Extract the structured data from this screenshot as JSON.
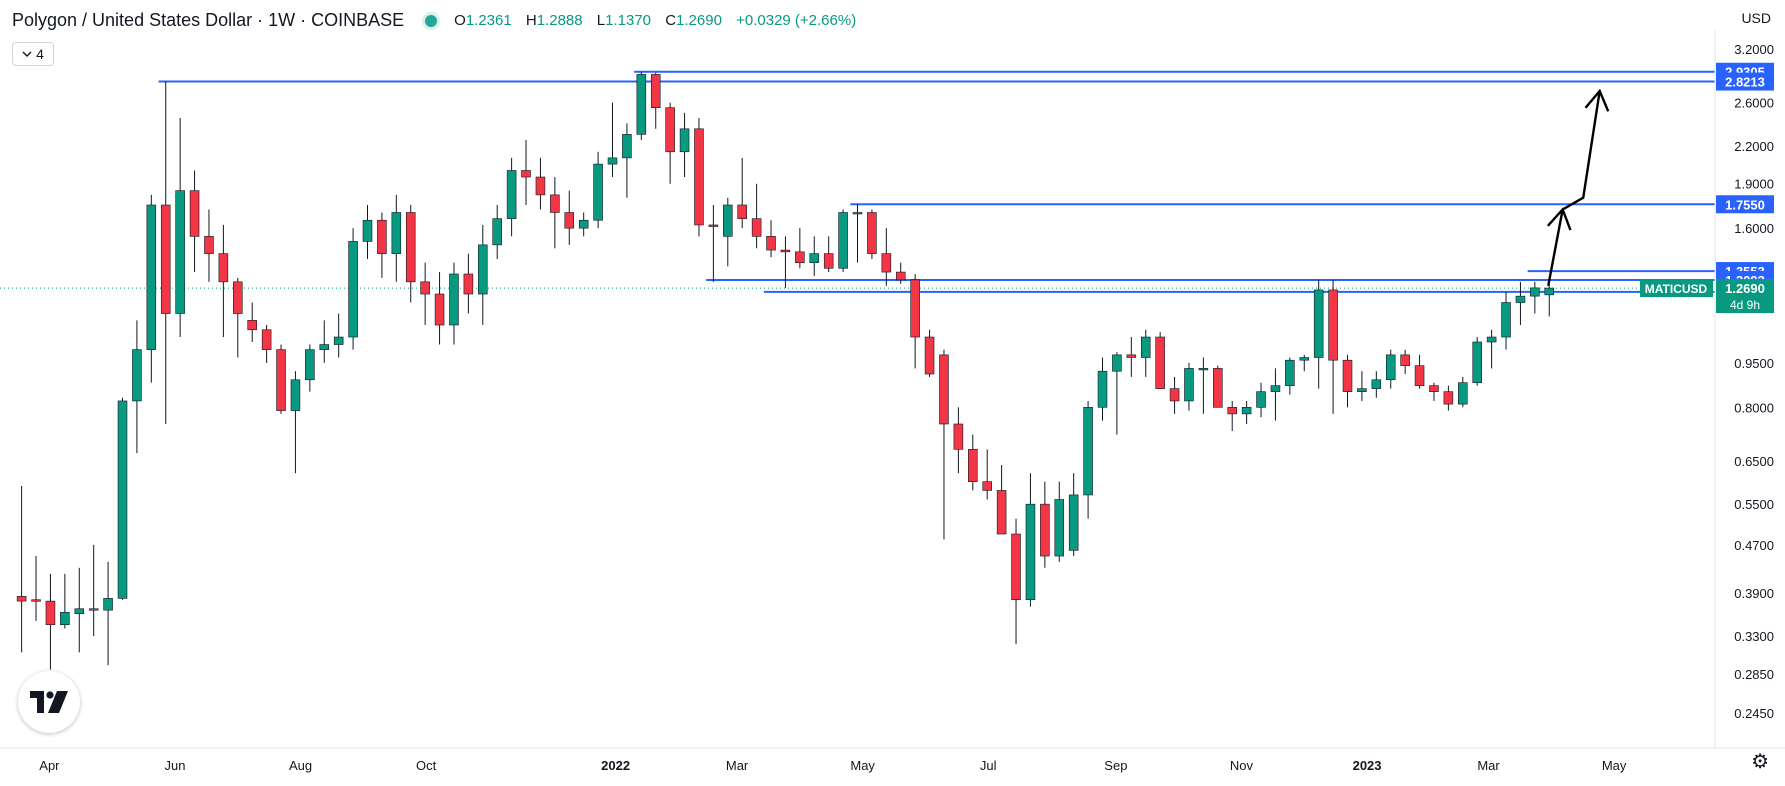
{
  "header": {
    "title": "Polygon / United States Dollar · 1W · COINBASE",
    "ohlc": [
      {
        "label": "O",
        "value": "1.2361"
      },
      {
        "label": "H",
        "value": "1.2888"
      },
      {
        "label": "L",
        "value": "1.1370"
      },
      {
        "label": "C",
        "value": "1.2690"
      }
    ],
    "change": "+0.0329 (+2.66%)",
    "status_icon": "market-status-dot"
  },
  "indicator_toggle": {
    "count": "4",
    "icon": "chevron-down-icon"
  },
  "currency": "USD",
  "settings_icon": "gear-icon",
  "logo": "tradingview-logo",
  "colors": {
    "up": "#089981",
    "down": "#f23645",
    "wick": "#131722",
    "level_line": "#2962ff",
    "level_tag": "#2962ff",
    "last_price": "#089981"
  },
  "chart_data": {
    "type": "candlestick",
    "symbol": "MATICUSD",
    "interval": "1W",
    "y_scale": "log",
    "ylim": [
      0.22,
      3.25
    ],
    "y_ticks": [
      3.2,
      2.6,
      2.2,
      1.9,
      1.6,
      0.95,
      0.8,
      0.65,
      0.55,
      0.47,
      0.39,
      0.33,
      0.285,
      0.245
    ],
    "y_tick_labels": [
      "3.2000",
      "2.6000",
      "2.2000",
      "1.9000",
      "1.6000",
      "0.9500",
      "0.8000",
      "0.6500",
      "0.5500",
      "0.4700",
      "0.3900",
      "0.3300",
      "0.2850",
      "0.2450"
    ],
    "x_range": [
      "2021-03-08",
      "2023-06-19"
    ],
    "x_ticks": [
      {
        "date": "2021-04-01",
        "label": "Apr"
      },
      {
        "date": "2021-06-01",
        "label": "Jun"
      },
      {
        "date": "2021-08-01",
        "label": "Aug"
      },
      {
        "date": "2021-10-01",
        "label": "Oct"
      },
      {
        "date": "2022-01-01",
        "label": "2022"
      },
      {
        "date": "2022-03-01",
        "label": "Mar"
      },
      {
        "date": "2022-05-01",
        "label": "May"
      },
      {
        "date": "2022-07-01",
        "label": "Jul"
      },
      {
        "date": "2022-09-01",
        "label": "Sep"
      },
      {
        "date": "2022-11-01",
        "label": "Nov"
      },
      {
        "date": "2023-01-01",
        "label": "2023"
      },
      {
        "date": "2023-03-01",
        "label": "Mar"
      },
      {
        "date": "2023-05-01",
        "label": "May"
      }
    ],
    "candles": [
      {
        "date": "2021-03-15",
        "o": 0.385,
        "h": 0.59,
        "l": 0.31,
        "c": 0.378
      },
      {
        "date": "2021-03-22",
        "o": 0.38,
        "h": 0.45,
        "l": 0.35,
        "c": 0.378
      },
      {
        "date": "2021-03-29",
        "o": 0.378,
        "h": 0.42,
        "l": 0.29,
        "c": 0.345
      },
      {
        "date": "2021-04-05",
        "o": 0.345,
        "h": 0.42,
        "l": 0.34,
        "c": 0.362
      },
      {
        "date": "2021-04-12",
        "o": 0.36,
        "h": 0.43,
        "l": 0.31,
        "c": 0.367
      },
      {
        "date": "2021-04-19",
        "o": 0.367,
        "h": 0.47,
        "l": 0.33,
        "c": 0.365
      },
      {
        "date": "2021-04-26",
        "o": 0.365,
        "h": 0.44,
        "l": 0.295,
        "c": 0.382
      },
      {
        "date": "2021-05-03",
        "o": 0.382,
        "h": 0.83,
        "l": 0.38,
        "c": 0.82
      },
      {
        "date": "2021-05-10",
        "o": 0.82,
        "h": 1.12,
        "l": 0.67,
        "c": 1.0
      },
      {
        "date": "2021-05-17",
        "o": 1.0,
        "h": 1.82,
        "l": 0.88,
        "c": 1.75
      },
      {
        "date": "2021-05-24",
        "o": 1.75,
        "h": 2.8213,
        "l": 0.75,
        "c": 1.15
      },
      {
        "date": "2021-05-31",
        "o": 1.15,
        "h": 2.45,
        "l": 1.05,
        "c": 1.85
      },
      {
        "date": "2021-06-07",
        "o": 1.85,
        "h": 2.0,
        "l": 1.35,
        "c": 1.55
      },
      {
        "date": "2021-06-14",
        "o": 1.55,
        "h": 1.72,
        "l": 1.3,
        "c": 1.45
      },
      {
        "date": "2021-06-21",
        "o": 1.45,
        "h": 1.62,
        "l": 1.05,
        "c": 1.3
      },
      {
        "date": "2021-06-28",
        "o": 1.3,
        "h": 1.32,
        "l": 0.97,
        "c": 1.15
      },
      {
        "date": "2021-07-05",
        "o": 1.12,
        "h": 1.2,
        "l": 1.03,
        "c": 1.08
      },
      {
        "date": "2021-07-12",
        "o": 1.08,
        "h": 1.1,
        "l": 0.95,
        "c": 1.0
      },
      {
        "date": "2021-07-19",
        "o": 1.0,
        "h": 1.02,
        "l": 0.78,
        "c": 0.79
      },
      {
        "date": "2021-07-26",
        "o": 0.79,
        "h": 0.92,
        "l": 0.62,
        "c": 0.89
      },
      {
        "date": "2021-08-02",
        "o": 0.89,
        "h": 1.02,
        "l": 0.85,
        "c": 1.0
      },
      {
        "date": "2021-08-09",
        "o": 1.0,
        "h": 1.12,
        "l": 0.95,
        "c": 1.02
      },
      {
        "date": "2021-08-16",
        "o": 1.02,
        "h": 1.15,
        "l": 0.97,
        "c": 1.05
      },
      {
        "date": "2021-08-23",
        "o": 1.05,
        "h": 1.6,
        "l": 1.0,
        "c": 1.52
      },
      {
        "date": "2021-08-30",
        "o": 1.52,
        "h": 1.75,
        "l": 1.42,
        "c": 1.65
      },
      {
        "date": "2021-09-06",
        "o": 1.65,
        "h": 1.7,
        "l": 1.32,
        "c": 1.45
      },
      {
        "date": "2021-09-13",
        "o": 1.45,
        "h": 1.82,
        "l": 1.3,
        "c": 1.7
      },
      {
        "date": "2021-09-20",
        "o": 1.7,
        "h": 1.75,
        "l": 1.2,
        "c": 1.3
      },
      {
        "date": "2021-09-27",
        "o": 1.3,
        "h": 1.4,
        "l": 1.1,
        "c": 1.24
      },
      {
        "date": "2021-10-04",
        "o": 1.24,
        "h": 1.35,
        "l": 1.02,
        "c": 1.1
      },
      {
        "date": "2021-10-11",
        "o": 1.1,
        "h": 1.4,
        "l": 1.02,
        "c": 1.34
      },
      {
        "date": "2021-10-18",
        "o": 1.34,
        "h": 1.45,
        "l": 1.15,
        "c": 1.24
      },
      {
        "date": "2021-10-25",
        "o": 1.24,
        "h": 1.62,
        "l": 1.1,
        "c": 1.5
      },
      {
        "date": "2021-11-01",
        "o": 1.5,
        "h": 1.75,
        "l": 1.42,
        "c": 1.66
      },
      {
        "date": "2021-11-08",
        "o": 1.66,
        "h": 2.1,
        "l": 1.55,
        "c": 2.0
      },
      {
        "date": "2021-11-15",
        "o": 2.0,
        "h": 2.25,
        "l": 1.75,
        "c": 1.95
      },
      {
        "date": "2021-11-22",
        "o": 1.95,
        "h": 2.1,
        "l": 1.72,
        "c": 1.82
      },
      {
        "date": "2021-11-29",
        "o": 1.82,
        "h": 1.95,
        "l": 1.48,
        "c": 1.7
      },
      {
        "date": "2021-12-06",
        "o": 1.7,
        "h": 1.85,
        "l": 1.5,
        "c": 1.6
      },
      {
        "date": "2021-12-13",
        "o": 1.6,
        "h": 1.7,
        "l": 1.55,
        "c": 1.65
      },
      {
        "date": "2021-12-20",
        "o": 1.65,
        "h": 2.15,
        "l": 1.6,
        "c": 2.05
      },
      {
        "date": "2021-12-27",
        "o": 2.05,
        "h": 2.6,
        "l": 1.95,
        "c": 2.1
      },
      {
        "date": "2022-01-03",
        "o": 2.1,
        "h": 2.4,
        "l": 1.8,
        "c": 2.3
      },
      {
        "date": "2022-01-10",
        "o": 2.3,
        "h": 2.9305,
        "l": 2.25,
        "c": 2.9
      },
      {
        "date": "2022-01-17",
        "o": 2.9,
        "h": 2.92,
        "l": 2.35,
        "c": 2.55
      },
      {
        "date": "2022-01-24",
        "o": 2.55,
        "h": 2.6,
        "l": 1.9,
        "c": 2.15
      },
      {
        "date": "2022-01-31",
        "o": 2.15,
        "h": 2.5,
        "l": 1.95,
        "c": 2.35
      },
      {
        "date": "2022-02-07",
        "o": 2.35,
        "h": 2.45,
        "l": 1.55,
        "c": 1.62
      },
      {
        "date": "2022-02-14",
        "o": 1.62,
        "h": 1.75,
        "l": 1.3,
        "c": 1.61
      },
      {
        "date": "2022-02-21",
        "o": 1.55,
        "h": 1.8,
        "l": 1.38,
        "c": 1.75
      },
      {
        "date": "2022-02-28",
        "o": 1.75,
        "h": 2.1,
        "l": 1.6,
        "c": 1.66
      },
      {
        "date": "2022-03-07",
        "o": 1.66,
        "h": 1.9,
        "l": 1.48,
        "c": 1.55
      },
      {
        "date": "2022-03-14",
        "o": 1.55,
        "h": 1.65,
        "l": 1.43,
        "c": 1.47
      },
      {
        "date": "2022-03-21",
        "o": 1.47,
        "h": 1.55,
        "l": 1.27,
        "c": 1.46
      },
      {
        "date": "2022-03-28",
        "o": 1.46,
        "h": 1.6,
        "l": 1.37,
        "c": 1.4
      },
      {
        "date": "2022-04-04",
        "o": 1.4,
        "h": 1.55,
        "l": 1.33,
        "c": 1.45
      },
      {
        "date": "2022-04-11",
        "o": 1.45,
        "h": 1.55,
        "l": 1.35,
        "c": 1.37
      },
      {
        "date": "2022-04-18",
        "o": 1.37,
        "h": 1.72,
        "l": 1.35,
        "c": 1.7
      },
      {
        "date": "2022-04-25",
        "o": 1.7,
        "h": 1.755,
        "l": 1.4,
        "c": 1.7
      },
      {
        "date": "2022-05-02",
        "o": 1.7,
        "h": 1.72,
        "l": 1.42,
        "c": 1.45
      },
      {
        "date": "2022-05-09",
        "o": 1.45,
        "h": 1.6,
        "l": 1.28,
        "c": 1.35
      },
      {
        "date": "2022-05-16",
        "o": 1.35,
        "h": 1.4,
        "l": 1.29,
        "c": 1.31
      },
      {
        "date": "2022-05-23",
        "o": 1.31,
        "h": 1.34,
        "l": 0.93,
        "c": 1.05
      },
      {
        "date": "2022-05-30",
        "o": 1.05,
        "h": 1.08,
        "l": 0.9,
        "c": 0.91
      },
      {
        "date": "2022-06-06",
        "o": 0.98,
        "h": 1.0,
        "l": 0.48,
        "c": 0.75
      },
      {
        "date": "2022-06-13",
        "o": 0.75,
        "h": 0.8,
        "l": 0.62,
        "c": 0.68
      },
      {
        "date": "2022-06-20",
        "o": 0.68,
        "h": 0.72,
        "l": 0.58,
        "c": 0.6
      },
      {
        "date": "2022-06-27",
        "o": 0.6,
        "h": 0.68,
        "l": 0.56,
        "c": 0.58
      },
      {
        "date": "2022-07-04",
        "o": 0.58,
        "h": 0.64,
        "l": 0.49,
        "c": 0.49
      },
      {
        "date": "2022-07-11",
        "o": 0.49,
        "h": 0.52,
        "l": 0.32,
        "c": 0.38
      },
      {
        "date": "2022-07-18",
        "o": 0.38,
        "h": 0.62,
        "l": 0.37,
        "c": 0.55
      },
      {
        "date": "2022-07-25",
        "o": 0.55,
        "h": 0.6,
        "l": 0.43,
        "c": 0.45
      },
      {
        "date": "2022-08-01",
        "o": 0.45,
        "h": 0.6,
        "l": 0.44,
        "c": 0.56
      },
      {
        "date": "2022-08-08",
        "o": 0.46,
        "h": 0.62,
        "l": 0.45,
        "c": 0.57
      },
      {
        "date": "2022-08-15",
        "o": 0.57,
        "h": 0.82,
        "l": 0.52,
        "c": 0.8
      },
      {
        "date": "2022-08-22",
        "o": 0.8,
        "h": 0.97,
        "l": 0.76,
        "c": 0.92
      },
      {
        "date": "2022-08-29",
        "o": 0.92,
        "h": 0.99,
        "l": 0.72,
        "c": 0.98
      },
      {
        "date": "2022-09-05",
        "o": 0.98,
        "h": 1.05,
        "l": 0.9,
        "c": 0.97
      },
      {
        "date": "2022-09-12",
        "o": 0.97,
        "h": 1.08,
        "l": 0.9,
        "c": 1.05
      },
      {
        "date": "2022-09-19",
        "o": 1.05,
        "h": 1.07,
        "l": 0.86,
        "c": 0.86
      },
      {
        "date": "2022-09-26",
        "o": 0.86,
        "h": 0.9,
        "l": 0.78,
        "c": 0.82
      },
      {
        "date": "2022-10-03",
        "o": 0.82,
        "h": 0.95,
        "l": 0.79,
        "c": 0.93
      },
      {
        "date": "2022-10-10",
        "o": 0.93,
        "h": 0.97,
        "l": 0.78,
        "c": 0.93
      },
      {
        "date": "2022-10-17",
        "o": 0.93,
        "h": 0.94,
        "l": 0.8,
        "c": 0.8
      },
      {
        "date": "2022-10-24",
        "o": 0.8,
        "h": 0.82,
        "l": 0.73,
        "c": 0.78
      },
      {
        "date": "2022-10-31",
        "o": 0.78,
        "h": 0.82,
        "l": 0.75,
        "c": 0.8
      },
      {
        "date": "2022-11-07",
        "o": 0.8,
        "h": 0.88,
        "l": 0.77,
        "c": 0.85
      },
      {
        "date": "2022-11-14",
        "o": 0.85,
        "h": 0.93,
        "l": 0.76,
        "c": 0.87
      },
      {
        "date": "2022-11-21",
        "o": 0.87,
        "h": 0.97,
        "l": 0.84,
        "c": 0.96
      },
      {
        "date": "2022-11-28",
        "o": 0.96,
        "h": 0.98,
        "l": 0.92,
        "c": 0.97
      },
      {
        "date": "2022-12-05",
        "o": 0.97,
        "h": 1.31,
        "l": 0.86,
        "c": 1.26
      },
      {
        "date": "2022-12-12",
        "o": 1.26,
        "h": 1.31,
        "l": 0.78,
        "c": 0.96
      },
      {
        "date": "2022-12-19",
        "o": 0.96,
        "h": 0.98,
        "l": 0.8,
        "c": 0.85
      },
      {
        "date": "2022-12-26",
        "o": 0.85,
        "h": 0.92,
        "l": 0.82,
        "c": 0.86
      },
      {
        "date": "2023-01-02",
        "o": 0.86,
        "h": 0.92,
        "l": 0.83,
        "c": 0.89
      },
      {
        "date": "2023-01-09",
        "o": 0.89,
        "h": 1.0,
        "l": 0.86,
        "c": 0.98
      },
      {
        "date": "2023-01-16",
        "o": 0.98,
        "h": 1.0,
        "l": 0.91,
        "c": 0.94
      },
      {
        "date": "2023-01-23",
        "o": 0.94,
        "h": 0.98,
        "l": 0.86,
        "c": 0.87
      },
      {
        "date": "2023-01-30",
        "o": 0.87,
        "h": 0.88,
        "l": 0.82,
        "c": 0.85
      },
      {
        "date": "2023-02-06",
        "o": 0.85,
        "h": 0.87,
        "l": 0.79,
        "c": 0.81
      },
      {
        "date": "2023-02-13",
        "o": 0.81,
        "h": 0.9,
        "l": 0.8,
        "c": 0.88
      },
      {
        "date": "2023-02-20",
        "o": 0.88,
        "h": 1.05,
        "l": 0.87,
        "c": 1.03
      },
      {
        "date": "2023-02-27",
        "o": 1.03,
        "h": 1.08,
        "l": 0.93,
        "c": 1.05
      },
      {
        "date": "2023-03-06",
        "o": 1.05,
        "h": 1.25,
        "l": 1.0,
        "c": 1.2
      },
      {
        "date": "2023-03-13",
        "o": 1.2,
        "h": 1.3,
        "l": 1.1,
        "c": 1.23
      },
      {
        "date": "2023-03-20",
        "o": 1.23,
        "h": 1.3,
        "l": 1.15,
        "c": 1.27
      },
      {
        "date": "2023-03-27",
        "o": 1.2361,
        "h": 1.2888,
        "l": 1.137,
        "c": 1.269
      }
    ],
    "levels": [
      {
        "price": 2.9305,
        "label": "2.9305",
        "from_date": "2022-01-10"
      },
      {
        "price": 2.8213,
        "label": "2.8213",
        "from_date": "2021-05-24"
      },
      {
        "price": 1.755,
        "label": "1.7550",
        "from_date": "2022-04-25"
      },
      {
        "price": 1.3553,
        "label": "1.3553",
        "from_date": "2023-03-20"
      },
      {
        "price": 1.3093,
        "label": "1.3093",
        "from_date": "2022-02-14"
      },
      {
        "price": 1.2504,
        "label": "1.2504",
        "from_date": "2022-03-14"
      }
    ],
    "last_price": {
      "price": 1.269,
      "label": "1.2690",
      "symbol_tag": "MATICUSD",
      "countdown": "4d 9h"
    },
    "projection_path": [
      {
        "date": "2023-03-30",
        "price": 1.28
      },
      {
        "date": "2023-04-06",
        "price": 1.72
      },
      {
        "date": "2023-04-16",
        "price": 1.8
      },
      {
        "date": "2023-04-24",
        "price": 2.72
      }
    ],
    "grid": false
  }
}
